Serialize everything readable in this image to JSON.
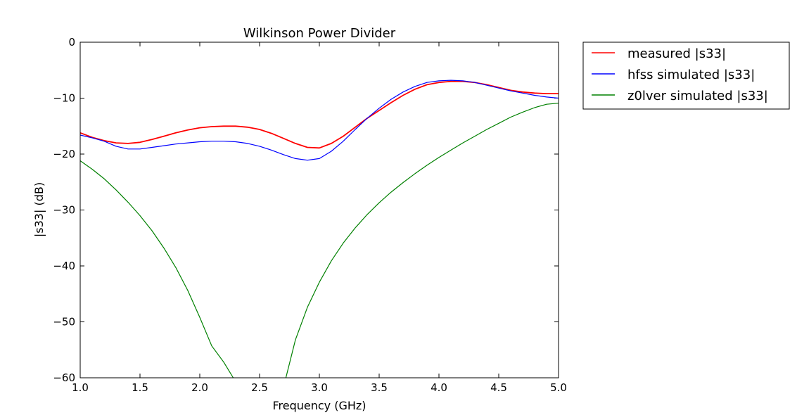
{
  "chart_data": {
    "type": "line",
    "title": "Wilkinson Power Divider",
    "xlabel": "Frequency (GHz)",
    "ylabel": "|s33| (dB)",
    "xlim": [
      1.0,
      5.0
    ],
    "ylim": [
      -60,
      0
    ],
    "xticks": [
      1.0,
      1.5,
      2.0,
      2.5,
      3.0,
      3.5,
      4.0,
      4.5,
      5.0
    ],
    "xtick_labels": [
      "1.0",
      "1.5",
      "2.0",
      "2.5",
      "3.0",
      "3.5",
      "4.0",
      "4.5",
      "5.0"
    ],
    "yticks": [
      0,
      -10,
      -20,
      -30,
      -40,
      -50,
      -60
    ],
    "ytick_labels": [
      "0",
      "−10",
      "−20",
      "−30",
      "−40",
      "−50",
      "−60"
    ],
    "grid": false,
    "legend_position": "outside-top-right",
    "series": [
      {
        "name": "measured |s33|",
        "color": "#ff0000",
        "x": [
          1.0,
          1.1,
          1.2,
          1.3,
          1.4,
          1.5,
          1.6,
          1.7,
          1.8,
          1.9,
          2.0,
          2.1,
          2.2,
          2.3,
          2.4,
          2.5,
          2.6,
          2.7,
          2.8,
          2.9,
          3.0,
          3.1,
          3.2,
          3.3,
          3.4,
          3.5,
          3.6,
          3.7,
          3.8,
          3.9,
          4.0,
          4.1,
          4.2,
          4.3,
          4.4,
          4.5,
          4.6,
          4.7,
          4.8,
          4.9,
          5.0
        ],
        "y": [
          -16.2,
          -17.0,
          -17.6,
          -18.0,
          -18.1,
          -17.9,
          -17.4,
          -16.8,
          -16.2,
          -15.7,
          -15.3,
          -15.1,
          -15.0,
          -15.0,
          -15.2,
          -15.6,
          -16.3,
          -17.2,
          -18.1,
          -18.8,
          -18.9,
          -18.1,
          -16.8,
          -15.2,
          -13.6,
          -12.2,
          -10.8,
          -9.5,
          -8.4,
          -7.6,
          -7.2,
          -7.0,
          -7.0,
          -7.2,
          -7.6,
          -8.1,
          -8.6,
          -8.9,
          -9.1,
          -9.2,
          -9.2
        ]
      },
      {
        "name": "hfss simulated |s33|",
        "color": "#0000ff",
        "x": [
          1.0,
          1.1,
          1.2,
          1.3,
          1.4,
          1.5,
          1.6,
          1.7,
          1.8,
          1.9,
          2.0,
          2.1,
          2.2,
          2.3,
          2.4,
          2.5,
          2.6,
          2.7,
          2.8,
          2.9,
          3.0,
          3.1,
          3.2,
          3.3,
          3.4,
          3.5,
          3.6,
          3.7,
          3.8,
          3.9,
          4.0,
          4.1,
          4.2,
          4.3,
          4.4,
          4.5,
          4.6,
          4.7,
          4.8,
          4.9,
          5.0
        ],
        "y": [
          -16.6,
          -17.1,
          -17.7,
          -18.6,
          -19.1,
          -19.1,
          -18.8,
          -18.5,
          -18.2,
          -18.0,
          -17.8,
          -17.7,
          -17.7,
          -17.8,
          -18.1,
          -18.6,
          -19.3,
          -20.1,
          -20.8,
          -21.1,
          -20.8,
          -19.5,
          -17.7,
          -15.6,
          -13.6,
          -11.8,
          -10.2,
          -8.9,
          -7.9,
          -7.2,
          -6.9,
          -6.8,
          -6.9,
          -7.2,
          -7.7,
          -8.2,
          -8.7,
          -9.1,
          -9.5,
          -9.8,
          -10.0
        ]
      },
      {
        "name": "z0lver simulated |s33|",
        "color": "#008000",
        "x": [
          1.0,
          1.1,
          1.2,
          1.3,
          1.4,
          1.5,
          1.6,
          1.7,
          1.8,
          1.9,
          2.0,
          2.1,
          2.2,
          2.28,
          null,
          2.72,
          2.8,
          2.9,
          3.0,
          3.1,
          3.2,
          3.3,
          3.4,
          3.5,
          3.6,
          3.7,
          3.8,
          3.9,
          4.0,
          4.1,
          4.2,
          4.3,
          4.4,
          4.5,
          4.6,
          4.7,
          4.8,
          4.9,
          5.0
        ],
        "y": [
          -21.2,
          -22.7,
          -24.4,
          -26.4,
          -28.6,
          -31.0,
          -33.7,
          -36.8,
          -40.3,
          -44.4,
          -49.2,
          -54.3,
          -57.2,
          -60.0,
          null,
          -60.0,
          -53.2,
          -47.4,
          -42.9,
          -39.1,
          -35.9,
          -33.2,
          -30.8,
          -28.7,
          -26.8,
          -25.1,
          -23.5,
          -22.0,
          -20.6,
          -19.3,
          -18.0,
          -16.8,
          -15.6,
          -14.5,
          -13.4,
          -12.5,
          -11.7,
          -11.1,
          -10.9
        ]
      }
    ]
  }
}
